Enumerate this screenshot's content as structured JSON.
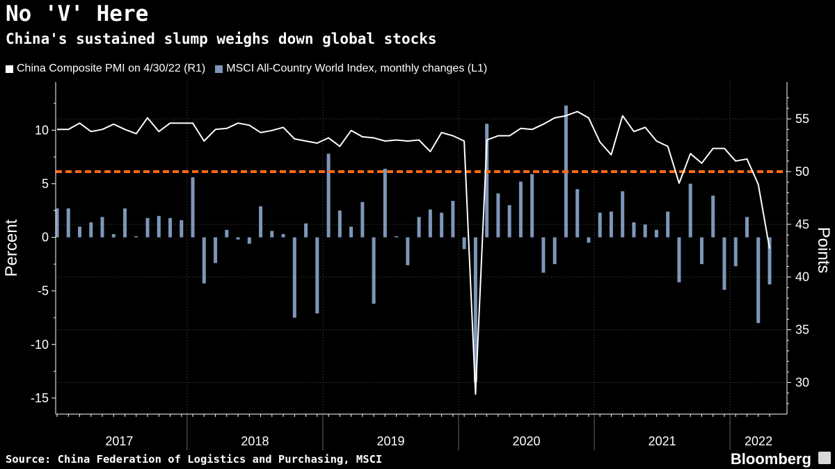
{
  "title": "No 'V' Here",
  "subtitle": "China's sustained slump weighs down global stocks",
  "legend": {
    "pmi_label": "China Composite PMI  on 4/30/22 (R1)",
    "msci_label": "MSCI All-Country World Index, monthly changes (L1)"
  },
  "source": "Source: China Federation of Logistics and Purchasing, MSCI",
  "brand": "Bloomberg",
  "colors": {
    "bar": "#7e96b8",
    "line": "#ffffff",
    "reference": "#ff6a13",
    "grid": "#555555"
  },
  "chart_data": {
    "type": "bar+line",
    "title": "No 'V' Here",
    "left_axis": {
      "label": "Percent",
      "ticks": [
        10,
        5,
        0,
        -5,
        -10,
        -15
      ],
      "tick_labels": [
        "10",
        "5",
        "0",
        "-5",
        "-10",
        "-15"
      ],
      "range": [
        -16.5,
        14.5
      ]
    },
    "right_axis": {
      "label": "Points",
      "ticks": [
        55,
        50,
        45,
        40,
        35,
        30
      ],
      "tick_labels": [
        "55",
        "50",
        "45",
        "40",
        "35",
        "30"
      ],
      "range": [
        27,
        58.5
      ]
    },
    "x_labels": [
      "2017",
      "2018",
      "2019",
      "2020",
      "2021",
      "2022"
    ],
    "reference_line": {
      "axis": "right",
      "value": 50
    },
    "series": [
      {
        "name": "MSCI All-Country World Index, monthly changes (L1)",
        "type": "bar",
        "axis": "left",
        "values": [
          2.7,
          2.7,
          1.0,
          1.4,
          1.9,
          0.3,
          2.7,
          0.1,
          1.8,
          2.0,
          1.8,
          1.6,
          5.6,
          -4.3,
          -2.4,
          0.7,
          -0.2,
          -0.6,
          2.9,
          0.6,
          0.3,
          -7.5,
          1.3,
          -7.1,
          7.8,
          2.5,
          1.0,
          3.3,
          -6.2,
          6.4,
          0.1,
          -2.6,
          1.9,
          2.6,
          2.3,
          3.4,
          -1.1,
          -13.5,
          10.6,
          4.1,
          3.0,
          5.2,
          5.9,
          -3.3,
          -2.5,
          12.3,
          4.5,
          -0.5,
          2.3,
          2.4,
          4.3,
          1.4,
          1.2,
          0.7,
          2.4,
          -4.2,
          5.0,
          -2.5,
          3.9,
          -4.9,
          -2.7,
          1.9,
          -8.0,
          -4.4
        ]
      },
      {
        "name": "China Composite PMI",
        "type": "line",
        "axis": "right",
        "values": [
          54.0,
          54.0,
          54.6,
          53.8,
          54.0,
          54.5,
          54.0,
          53.6,
          55.1,
          53.8,
          54.6,
          54.6,
          54.6,
          52.9,
          54.0,
          54.1,
          54.6,
          54.4,
          53.7,
          53.9,
          54.2,
          53.1,
          52.9,
          52.7,
          53.2,
          52.4,
          53.9,
          53.3,
          53.2,
          52.9,
          53.0,
          52.9,
          53.0,
          51.9,
          53.7,
          53.4,
          52.9,
          28.9,
          53.0,
          53.4,
          53.4,
          54.1,
          54.0,
          54.5,
          55.1,
          55.3,
          55.7,
          55.1,
          52.8,
          51.6,
          55.3,
          53.8,
          54.2,
          52.9,
          52.4,
          48.9,
          51.7,
          50.8,
          52.2,
          52.2,
          51.0,
          51.2,
          48.8,
          42.7
        ]
      }
    ]
  }
}
